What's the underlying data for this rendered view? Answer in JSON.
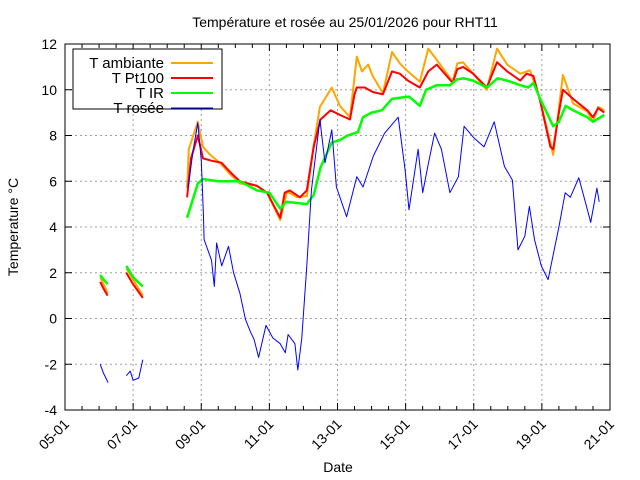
{
  "chart_data": {
    "type": "line",
    "title": "Température et rosée au 25/01/2026 pour RHT11",
    "xlabel": "Date",
    "ylabel": "Temperature °C",
    "xlim": [
      "05:00",
      "21:00"
    ],
    "ylim": [
      -4,
      12
    ],
    "xticks": [
      "05-01",
      "07-01",
      "09-01",
      "11-01",
      "13-01",
      "15-01",
      "17-01",
      "19-01",
      "21-01"
    ],
    "yticks": [
      -4,
      -2,
      0,
      2,
      4,
      6,
      8,
      10,
      12
    ],
    "grid": true,
    "legend_position": "top-left",
    "series": [
      {
        "name": "T ambiante",
        "color": "#ffa500",
        "segments": [
          [
            [
              "06:02",
              1.8
            ],
            [
              "06:08",
              1.5
            ],
            [
              "06:15",
              1.1
            ]
          ],
          [
            [
              "06:48",
              2.2
            ],
            [
              "07:00",
              1.7
            ],
            [
              "07:17",
              1.0
            ]
          ],
          [
            [
              "08:35",
              5.7
            ],
            [
              "08:38",
              7.4
            ],
            [
              "08:54",
              8.6
            ],
            [
              "09:03",
              7.5
            ],
            [
              "09:16",
              7.15
            ],
            [
              "09:33",
              6.8
            ],
            [
              "09:51",
              6.3
            ],
            [
              "10:08",
              5.9
            ],
            [
              "10:38",
              5.8
            ],
            [
              "10:56",
              5.5
            ],
            [
              "11:19",
              4.3
            ],
            [
              "11:31",
              5.55
            ],
            [
              "11:49",
              5.3
            ],
            [
              "12:06",
              5.35
            ],
            [
              "12:17",
              7.4
            ],
            [
              "12:29",
              9.25
            ],
            [
              "12:50",
              10.1
            ],
            [
              "13:04",
              9.3
            ],
            [
              "13:22",
              8.8
            ],
            [
              "13:34",
              11.45
            ],
            [
              "13:43",
              10.8
            ],
            [
              "13:54",
              11.1
            ],
            [
              "14:02",
              10.6
            ],
            [
              "14:20",
              9.85
            ],
            [
              "14:36",
              11.65
            ],
            [
              "14:50",
              11.15
            ],
            [
              "15:04",
              10.8
            ],
            [
              "15:25",
              10.35
            ],
            [
              "15:40",
              11.8
            ],
            [
              "15:55",
              11.3
            ],
            [
              "16:23",
              10.35
            ],
            [
              "16:31",
              11.15
            ],
            [
              "16:41",
              11.2
            ],
            [
              "16:59",
              10.7
            ],
            [
              "17:23",
              10.0
            ],
            [
              "17:41",
              11.8
            ],
            [
              "17:59",
              11.1
            ],
            [
              "18:22",
              10.7
            ],
            [
              "18:39",
              10.85
            ],
            [
              "18:57",
              9.55
            ],
            [
              "19:20",
              7.15
            ],
            [
              "19:37",
              10.65
            ],
            [
              "19:55",
              9.4
            ],
            [
              "20:20",
              9.05
            ],
            [
              "20:30",
              8.6
            ],
            [
              "20:39",
              9.25
            ],
            [
              "20:50",
              9.1
            ]
          ]
        ]
      },
      {
        "name": "T Pt100",
        "color": "#ff0000",
        "segments": [
          [
            [
              "06:02",
              1.6
            ],
            [
              "06:08",
              1.3
            ],
            [
              "06:15",
              1.0
            ]
          ],
          [
            [
              "06:48",
              2.0
            ],
            [
              "07:00",
              1.5
            ],
            [
              "07:17",
              0.9
            ]
          ],
          [
            [
              "08:35",
              5.3
            ],
            [
              "08:42",
              7.0
            ],
            [
              "08:54",
              8.0
            ],
            [
              "09:03",
              7.0
            ],
            [
              "09:18",
              6.9
            ],
            [
              "09:36",
              6.8
            ],
            [
              "09:51",
              6.4
            ],
            [
              "10:08",
              6.0
            ],
            [
              "10:38",
              5.8
            ],
            [
              "10:56",
              5.5
            ],
            [
              "11:19",
              4.4
            ],
            [
              "11:27",
              5.5
            ],
            [
              "11:36",
              5.6
            ],
            [
              "11:54",
              5.3
            ],
            [
              "12:06",
              5.6
            ],
            [
              "12:18",
              7.5
            ],
            [
              "12:30",
              8.7
            ],
            [
              "12:48",
              9.1
            ],
            [
              "13:04",
              8.9
            ],
            [
              "13:22",
              8.7
            ],
            [
              "13:30",
              9.8
            ],
            [
              "13:34",
              10.1
            ],
            [
              "13:48",
              10.1
            ],
            [
              "14:02",
              9.9
            ],
            [
              "14:20",
              9.8
            ],
            [
              "14:36",
              10.8
            ],
            [
              "14:50",
              10.7
            ],
            [
              "15:04",
              10.4
            ],
            [
              "15:25",
              10.1
            ],
            [
              "15:40",
              10.8
            ],
            [
              "15:55",
              11.1
            ],
            [
              "16:23",
              10.3
            ],
            [
              "16:31",
              10.9
            ],
            [
              "16:41",
              11.0
            ],
            [
              "16:59",
              10.7
            ],
            [
              "17:23",
              10.1
            ],
            [
              "17:41",
              11.2
            ],
            [
              "17:59",
              10.8
            ],
            [
              "18:22",
              10.4
            ],
            [
              "18:33",
              10.7
            ],
            [
              "18:45",
              10.6
            ],
            [
              "18:57",
              9.5
            ],
            [
              "19:15",
              7.5
            ],
            [
              "19:20",
              7.4
            ],
            [
              "19:30",
              9.0
            ],
            [
              "19:37",
              10.0
            ],
            [
              "19:55",
              9.6
            ],
            [
              "20:20",
              9.1
            ],
            [
              "20:30",
              8.8
            ],
            [
              "20:39",
              9.2
            ],
            [
              "20:50",
              9.0
            ]
          ]
        ]
      },
      {
        "name": "T IR",
        "color": "#00ff00",
        "segments": [
          [
            [
              "06:02",
              1.9
            ],
            [
              "06:08",
              1.7
            ],
            [
              "06:15",
              1.5
            ]
          ],
          [
            [
              "06:48",
              2.3
            ],
            [
              "07:00",
              1.8
            ],
            [
              "07:17",
              1.4
            ]
          ],
          [
            [
              "08:35",
              4.4
            ],
            [
              "08:54",
              5.9
            ],
            [
              "09:03",
              6.1
            ],
            [
              "09:30",
              6.0
            ],
            [
              "10:08",
              6.0
            ],
            [
              "10:38",
              5.6
            ],
            [
              "11:00",
              5.5
            ],
            [
              "11:19",
              4.8
            ],
            [
              "11:30",
              5.1
            ],
            [
              "12:06",
              5.0
            ],
            [
              "12:18",
              5.4
            ],
            [
              "12:30",
              6.6
            ],
            [
              "12:50",
              7.7
            ],
            [
              "13:04",
              7.8
            ],
            [
              "13:18",
              8.0
            ],
            [
              "13:36",
              8.15
            ],
            [
              "13:45",
              8.8
            ],
            [
              "14:00",
              9.0
            ],
            [
              "14:18",
              9.1
            ],
            [
              "14:36",
              9.6
            ],
            [
              "14:50",
              9.65
            ],
            [
              "15:06",
              9.7
            ],
            [
              "15:25",
              9.3
            ],
            [
              "15:36",
              10.0
            ],
            [
              "15:55",
              10.2
            ],
            [
              "16:18",
              10.2
            ],
            [
              "16:30",
              10.45
            ],
            [
              "16:42",
              10.5
            ],
            [
              "16:59",
              10.4
            ],
            [
              "17:23",
              10.1
            ],
            [
              "17:42",
              10.5
            ],
            [
              "17:59",
              10.4
            ],
            [
              "18:22",
              10.2
            ],
            [
              "18:36",
              10.1
            ],
            [
              "18:45",
              10.3
            ],
            [
              "18:57",
              9.6
            ],
            [
              "19:20",
              8.4
            ],
            [
              "19:30",
              8.6
            ],
            [
              "19:42",
              9.3
            ],
            [
              "19:55",
              9.1
            ],
            [
              "20:20",
              8.8
            ],
            [
              "20:30",
              8.6
            ],
            [
              "20:50",
              8.9
            ]
          ]
        ]
      },
      {
        "name": "T rosée",
        "color": "#0000ff",
        "segments": [
          [
            [
              "06:02",
              -2.0
            ],
            [
              "06:08",
              -2.4
            ],
            [
              "06:16",
              -2.8
            ]
          ],
          [
            [
              "06:48",
              -2.5
            ],
            [
              "06:55",
              -2.3
            ],
            [
              "07:00",
              -2.7
            ],
            [
              "07:10",
              -2.6
            ],
            [
              "07:17",
              -1.8
            ]
          ],
          [
            [
              "08:37",
              5.75
            ],
            [
              "08:46",
              7.4
            ],
            [
              "08:54",
              8.55
            ],
            [
              "09:00",
              6.9
            ],
            [
              "09:04",
              4.45
            ],
            [
              "09:05",
              3.45
            ],
            [
              "09:18",
              2.55
            ],
            [
              "09:23",
              1.4
            ],
            [
              "09:27",
              3.3
            ],
            [
              "09:36",
              2.3
            ],
            [
              "09:48",
              3.15
            ],
            [
              "09:57",
              2.0
            ],
            [
              "10:08",
              1.1
            ],
            [
              "10:18",
              -0.05
            ],
            [
              "10:27",
              -0.6
            ],
            [
              "10:33",
              -0.9
            ],
            [
              "10:41",
              -1.7
            ],
            [
              "10:54",
              -0.3
            ],
            [
              "11:06",
              -0.85
            ],
            [
              "11:19",
              -1.1
            ],
            [
              "11:28",
              -1.5
            ],
            [
              "11:33",
              -0.7
            ],
            [
              "11:45",
              -1.1
            ],
            [
              "11:50",
              -2.25
            ],
            [
              "11:57",
              -0.9
            ],
            [
              "12:06",
              2.3
            ],
            [
              "12:14",
              5.6
            ],
            [
              "12:29",
              8.7
            ],
            [
              "12:38",
              6.8
            ],
            [
              "12:50",
              8.25
            ],
            [
              "12:58",
              5.75
            ],
            [
              "13:16",
              4.45
            ],
            [
              "13:34",
              6.2
            ],
            [
              "13:45",
              5.75
            ],
            [
              "14:03",
              7.1
            ],
            [
              "14:23",
              8.1
            ],
            [
              "14:47",
              8.8
            ],
            [
              "14:59",
              6.5
            ],
            [
              "15:06",
              4.75
            ],
            [
              "15:22",
              7.4
            ],
            [
              "15:30",
              5.5
            ],
            [
              "15:39",
              6.65
            ],
            [
              "15:51",
              8.1
            ],
            [
              "16:03",
              7.4
            ],
            [
              "16:18",
              5.5
            ],
            [
              "16:33",
              6.2
            ],
            [
              "16:43",
              8.4
            ],
            [
              "17:00",
              7.9
            ],
            [
              "17:18",
              7.5
            ],
            [
              "17:36",
              8.6
            ],
            [
              "17:54",
              6.65
            ],
            [
              "18:08",
              6.05
            ],
            [
              "18:18",
              3.0
            ],
            [
              "18:30",
              3.6
            ],
            [
              "18:38",
              4.9
            ],
            [
              "18:47",
              3.45
            ],
            [
              "18:59",
              2.3
            ],
            [
              "19:11",
              1.7
            ],
            [
              "19:30",
              4.0
            ],
            [
              "19:41",
              5.5
            ],
            [
              "19:50",
              5.3
            ],
            [
              "20:05",
              6.15
            ],
            [
              "20:17",
              5.05
            ],
            [
              "20:26",
              4.2
            ],
            [
              "20:37",
              5.7
            ],
            [
              "20:41",
              5.1
            ]
          ]
        ]
      }
    ]
  }
}
